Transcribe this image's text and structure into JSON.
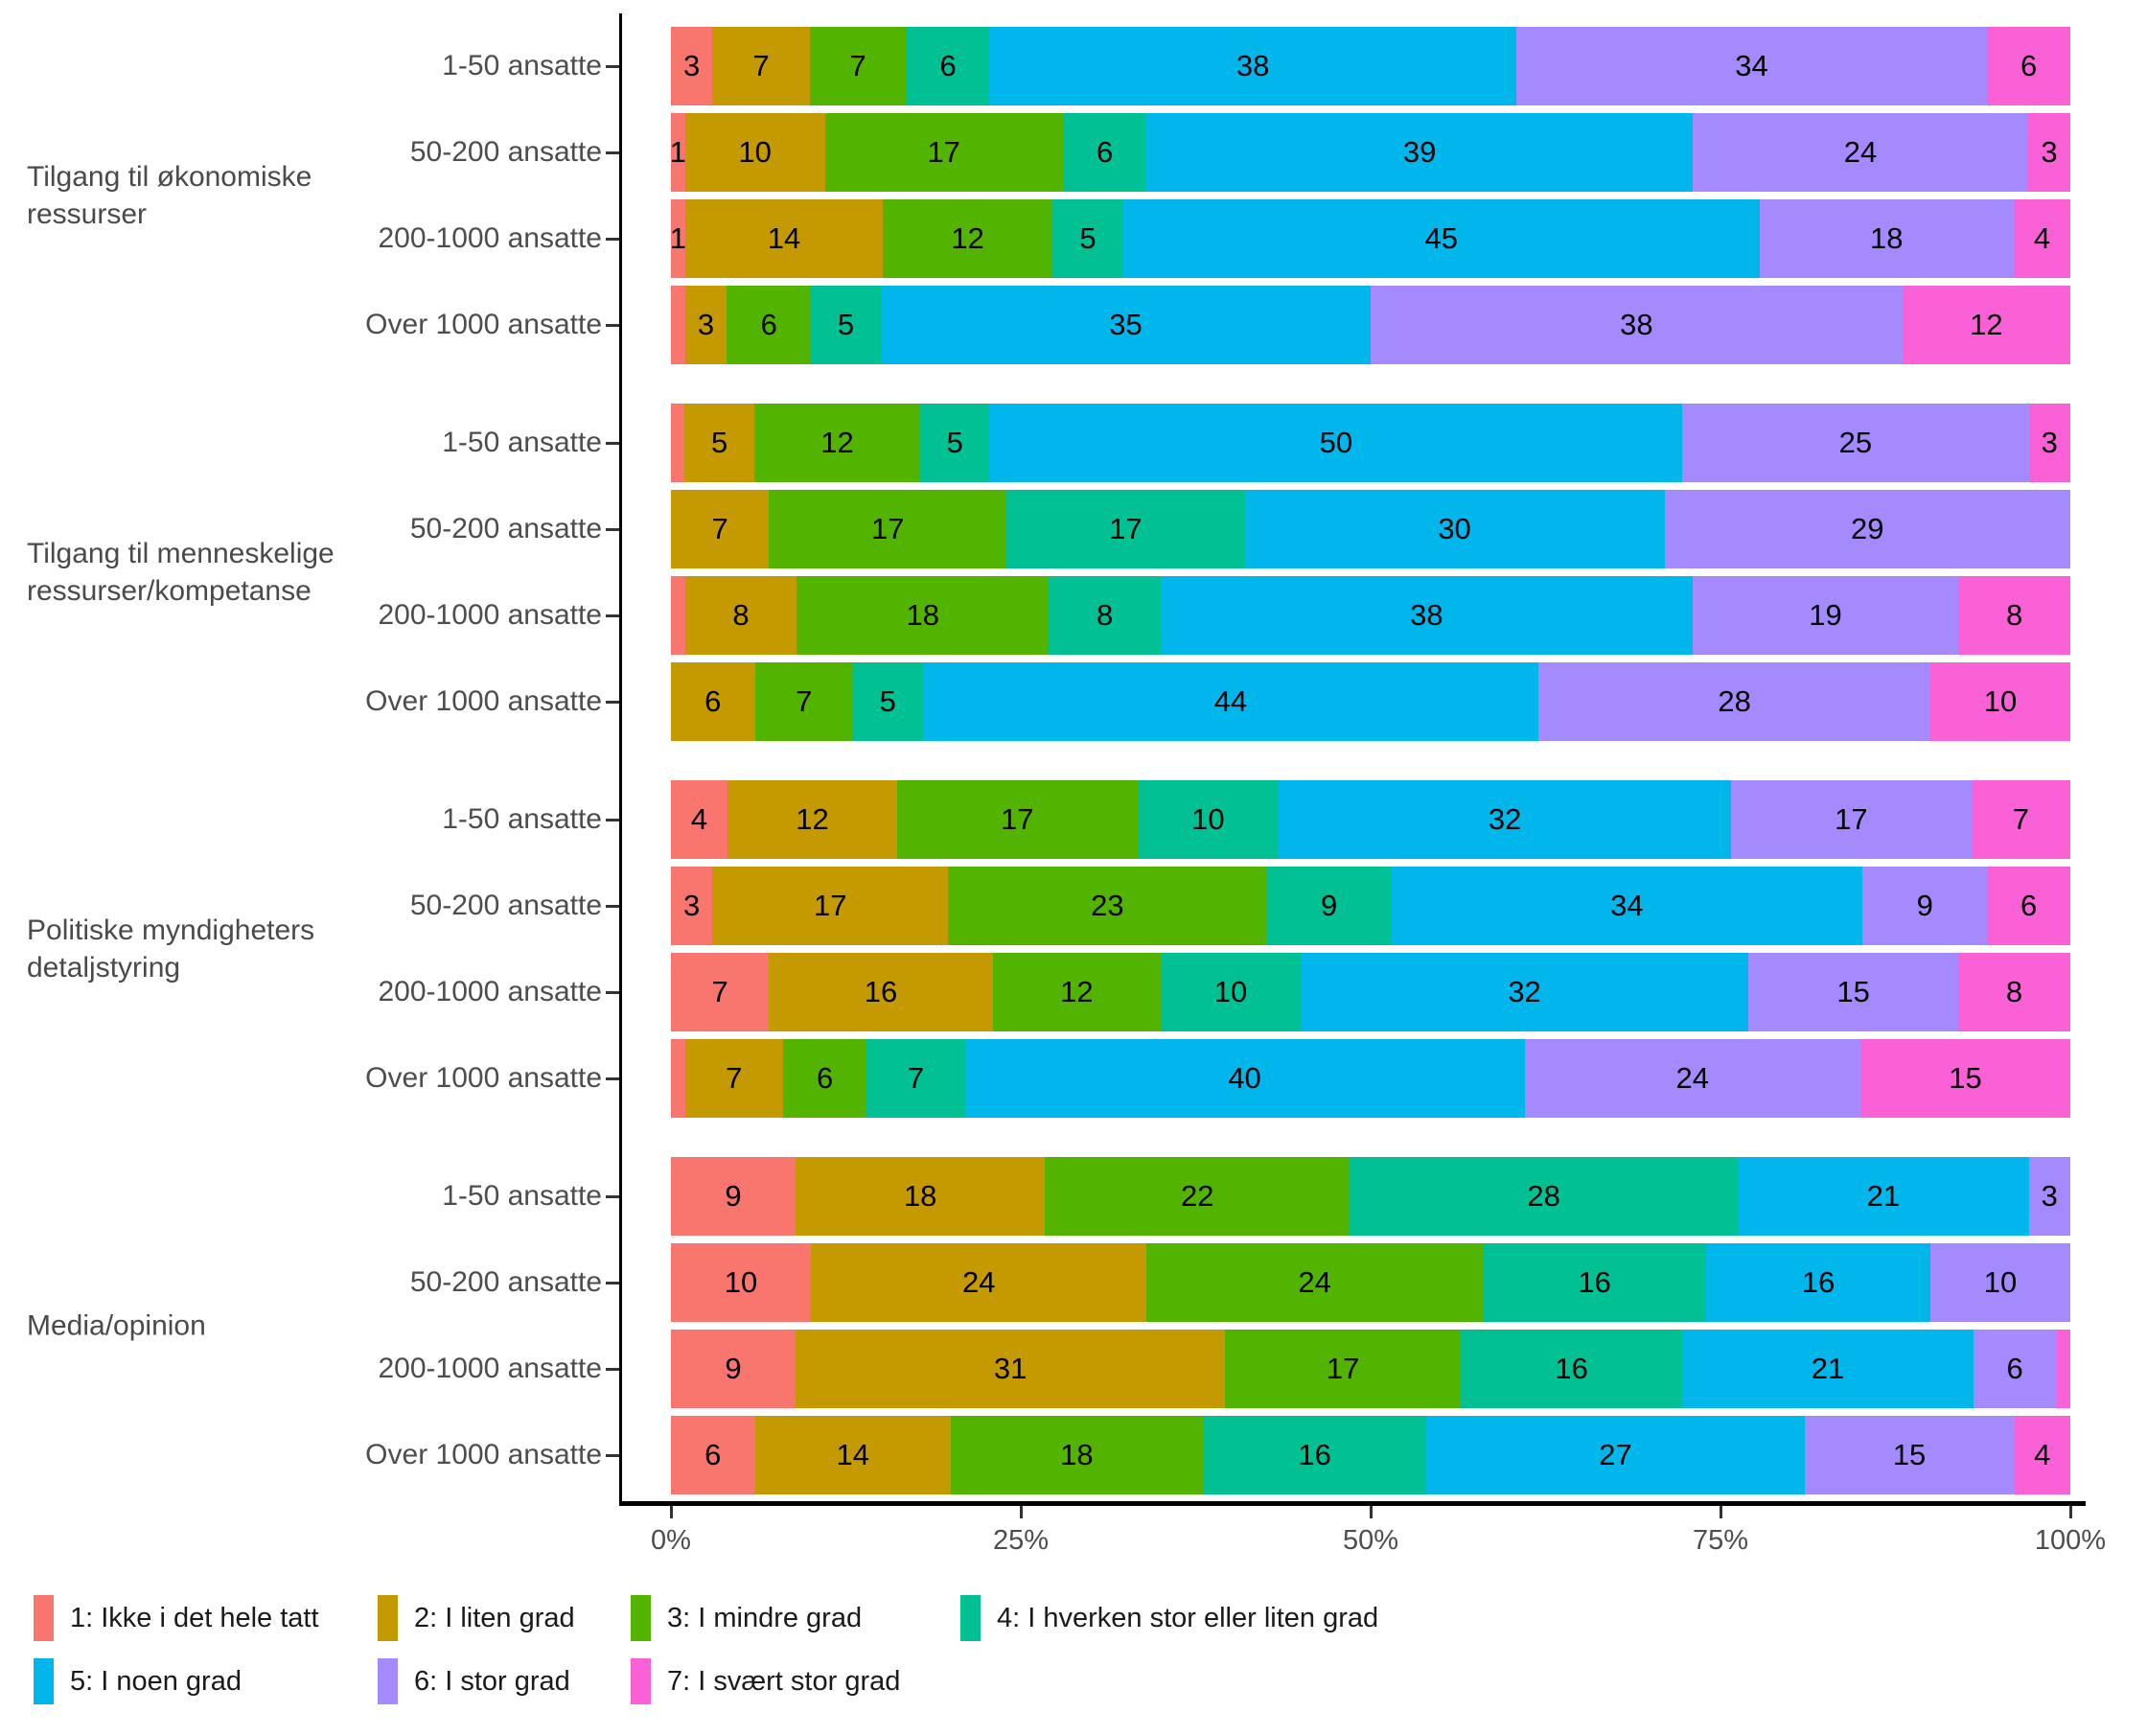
{
  "chart_data": {
    "type": "bar",
    "variant": "stacked-percent-horizontal",
    "grid": false,
    "legend_position": "bottom",
    "x_axis": {
      "range": [
        0,
        100
      ],
      "ticks": [
        {
          "value": 0,
          "label": "0%"
        },
        {
          "value": 25,
          "label": "25%"
        },
        {
          "value": 50,
          "label": "50%"
        },
        {
          "value": 75,
          "label": "75%"
        },
        {
          "value": 100,
          "label": "100%"
        }
      ]
    },
    "levels": [
      {
        "id": 1,
        "label": "1: Ikke i det hele tatt",
        "color": "#F8766D"
      },
      {
        "id": 2,
        "label": "2: I liten grad",
        "color": "#C49A00"
      },
      {
        "id": 3,
        "label": "3: I mindre grad",
        "color": "#53B400"
      },
      {
        "id": 4,
        "label": "4: I hverken stor eller liten grad",
        "color": "#00C094"
      },
      {
        "id": 5,
        "label": "5: I noen grad",
        "color": "#00B6EB"
      },
      {
        "id": 6,
        "label": "6: I stor grad",
        "color": "#A58AFF"
      },
      {
        "id": 7,
        "label": "7: I svært stor grad",
        "color": "#FB61D7"
      }
    ],
    "groups": [
      {
        "label": "Tilgang til økonomiske ressurser",
        "label_lines": [
          "Tilgang til økonomiske",
          "ressurser"
        ],
        "rows": [
          {
            "category": "1-50 ansatte",
            "segments": [
              {
                "level": 1,
                "value": 3,
                "label": "3"
              },
              {
                "level": 2,
                "value": 7,
                "label": "7"
              },
              {
                "level": 3,
                "value": 7,
                "label": "7"
              },
              {
                "level": 4,
                "value": 6,
                "label": "6"
              },
              {
                "level": 5,
                "value": 38,
                "label": "38"
              },
              {
                "level": 6,
                "value": 34,
                "label": "34"
              },
              {
                "level": 7,
                "value": 6,
                "label": "6"
              }
            ]
          },
          {
            "category": "50-200 ansatte",
            "segments": [
              {
                "level": 1,
                "value": 1,
                "label": "1"
              },
              {
                "level": 2,
                "value": 10,
                "label": "10"
              },
              {
                "level": 3,
                "value": 17,
                "label": "17"
              },
              {
                "level": 4,
                "value": 6,
                "label": "6"
              },
              {
                "level": 5,
                "value": 39,
                "label": "39"
              },
              {
                "level": 6,
                "value": 24,
                "label": "24"
              },
              {
                "level": 7,
                "value": 3,
                "label": "3"
              }
            ]
          },
          {
            "category": "200-1000 ansatte",
            "segments": [
              {
                "level": 1,
                "value": 1,
                "label": "1"
              },
              {
                "level": 2,
                "value": 14,
                "label": "14"
              },
              {
                "level": 3,
                "value": 12,
                "label": "12"
              },
              {
                "level": 4,
                "value": 5,
                "label": "5"
              },
              {
                "level": 5,
                "value": 45,
                "label": "45"
              },
              {
                "level": 6,
                "value": 18,
                "label": "18"
              },
              {
                "level": 7,
                "value": 4,
                "label": "4"
              }
            ]
          },
          {
            "category": "Over 1000 ansatte",
            "segments": [
              {
                "level": 1,
                "value": 1,
                "label": ""
              },
              {
                "level": 2,
                "value": 3,
                "label": "3"
              },
              {
                "level": 3,
                "value": 6,
                "label": "6"
              },
              {
                "level": 4,
                "value": 5,
                "label": "5"
              },
              {
                "level": 5,
                "value": 35,
                "label": "35"
              },
              {
                "level": 6,
                "value": 38,
                "label": "38"
              },
              {
                "level": 7,
                "value": 12,
                "label": "12"
              }
            ]
          }
        ]
      },
      {
        "label": "Tilgang til menneskelige ressurser/kompetanse",
        "label_lines": [
          "Tilgang til menneskelige",
          "ressurser/kompetanse"
        ],
        "rows": [
          {
            "category": "1-50 ansatte",
            "segments": [
              {
                "level": 1,
                "value": 1,
                "label": ""
              },
              {
                "level": 2,
                "value": 5,
                "label": "5"
              },
              {
                "level": 3,
                "value": 12,
                "label": "12"
              },
              {
                "level": 4,
                "value": 5,
                "label": "5"
              },
              {
                "level": 5,
                "value": 50,
                "label": "50"
              },
              {
                "level": 6,
                "value": 25,
                "label": "25"
              },
              {
                "level": 7,
                "value": 3,
                "label": "3"
              }
            ]
          },
          {
            "category": "50-200 ansatte",
            "segments": [
              {
                "level": 2,
                "value": 7,
                "label": "7"
              },
              {
                "level": 3,
                "value": 17,
                "label": "17"
              },
              {
                "level": 4,
                "value": 17,
                "label": "17"
              },
              {
                "level": 5,
                "value": 30,
                "label": "30"
              },
              {
                "level": 6,
                "value": 29,
                "label": "29"
              }
            ]
          },
          {
            "category": "200-1000 ansatte",
            "segments": [
              {
                "level": 1,
                "value": 1,
                "label": ""
              },
              {
                "level": 2,
                "value": 8,
                "label": "8"
              },
              {
                "level": 3,
                "value": 18,
                "label": "18"
              },
              {
                "level": 4,
                "value": 8,
                "label": "8"
              },
              {
                "level": 5,
                "value": 38,
                "label": "38"
              },
              {
                "level": 6,
                "value": 19,
                "label": "19"
              },
              {
                "level": 7,
                "value": 8,
                "label": "8"
              }
            ]
          },
          {
            "category": "Over 1000 ansatte",
            "segments": [
              {
                "level": 2,
                "value": 6,
                "label": "6"
              },
              {
                "level": 3,
                "value": 7,
                "label": "7"
              },
              {
                "level": 4,
                "value": 5,
                "label": "5"
              },
              {
                "level": 5,
                "value": 44,
                "label": "44"
              },
              {
                "level": 6,
                "value": 28,
                "label": "28"
              },
              {
                "level": 7,
                "value": 10,
                "label": "10"
              }
            ]
          }
        ]
      },
      {
        "label": "Politiske myndigheters detaljstyring",
        "label_lines": [
          "Politiske myndigheters",
          "detaljstyring"
        ],
        "rows": [
          {
            "category": "1-50 ansatte",
            "segments": [
              {
                "level": 1,
                "value": 4,
                "label": "4"
              },
              {
                "level": 2,
                "value": 12,
                "label": "12"
              },
              {
                "level": 3,
                "value": 17,
                "label": "17"
              },
              {
                "level": 4,
                "value": 10,
                "label": "10"
              },
              {
                "level": 5,
                "value": 32,
                "label": "32"
              },
              {
                "level": 6,
                "value": 17,
                "label": "17"
              },
              {
                "level": 7,
                "value": 7,
                "label": "7"
              }
            ]
          },
          {
            "category": "50-200 ansatte",
            "segments": [
              {
                "level": 1,
                "value": 3,
                "label": "3"
              },
              {
                "level": 2,
                "value": 17,
                "label": "17"
              },
              {
                "level": 3,
                "value": 23,
                "label": "23"
              },
              {
                "level": 4,
                "value": 9,
                "label": "9"
              },
              {
                "level": 5,
                "value": 34,
                "label": "34"
              },
              {
                "level": 6,
                "value": 9,
                "label": "9"
              },
              {
                "level": 7,
                "value": 6,
                "label": "6"
              }
            ]
          },
          {
            "category": "200-1000 ansatte",
            "segments": [
              {
                "level": 1,
                "value": 7,
                "label": "7"
              },
              {
                "level": 2,
                "value": 16,
                "label": "16"
              },
              {
                "level": 3,
                "value": 12,
                "label": "12"
              },
              {
                "level": 4,
                "value": 10,
                "label": "10"
              },
              {
                "level": 5,
                "value": 32,
                "label": "32"
              },
              {
                "level": 6,
                "value": 15,
                "label": "15"
              },
              {
                "level": 7,
                "value": 8,
                "label": "8"
              }
            ]
          },
          {
            "category": "Over 1000 ansatte",
            "segments": [
              {
                "level": 1,
                "value": 1,
                "label": ""
              },
              {
                "level": 2,
                "value": 7,
                "label": "7"
              },
              {
                "level": 3,
                "value": 6,
                "label": "6"
              },
              {
                "level": 4,
                "value": 7,
                "label": "7"
              },
              {
                "level": 5,
                "value": 40,
                "label": "40"
              },
              {
                "level": 6,
                "value": 24,
                "label": "24"
              },
              {
                "level": 7,
                "value": 15,
                "label": "15"
              }
            ]
          }
        ]
      },
      {
        "label": "Media/opinion",
        "label_lines": [
          "Media/opinion"
        ],
        "rows": [
          {
            "category": "1-50 ansatte",
            "segments": [
              {
                "level": 1,
                "value": 9,
                "label": "9"
              },
              {
                "level": 2,
                "value": 18,
                "label": "18"
              },
              {
                "level": 3,
                "value": 22,
                "label": "22"
              },
              {
                "level": 4,
                "value": 28,
                "label": "28"
              },
              {
                "level": 5,
                "value": 21,
                "label": "21"
              },
              {
                "level": 6,
                "value": 3,
                "label": "3"
              }
            ]
          },
          {
            "category": "50-200 ansatte",
            "segments": [
              {
                "level": 1,
                "value": 10,
                "label": "10"
              },
              {
                "level": 2,
                "value": 24,
                "label": "24"
              },
              {
                "level": 3,
                "value": 24,
                "label": "24"
              },
              {
                "level": 4,
                "value": 16,
                "label": "16"
              },
              {
                "level": 5,
                "value": 16,
                "label": "16"
              },
              {
                "level": 6,
                "value": 10,
                "label": "10"
              }
            ]
          },
          {
            "category": "200-1000 ansatte",
            "segments": [
              {
                "level": 1,
                "value": 9,
                "label": "9"
              },
              {
                "level": 2,
                "value": 31,
                "label": "31"
              },
              {
                "level": 3,
                "value": 17,
                "label": "17"
              },
              {
                "level": 4,
                "value": 16,
                "label": "16"
              },
              {
                "level": 5,
                "value": 21,
                "label": "21"
              },
              {
                "level": 6,
                "value": 6,
                "label": "6"
              },
              {
                "level": 7,
                "value": 1,
                "label": ""
              }
            ]
          },
          {
            "category": "Over 1000 ansatte",
            "segments": [
              {
                "level": 1,
                "value": 6,
                "label": "6"
              },
              {
                "level": 2,
                "value": 14,
                "label": "14"
              },
              {
                "level": 3,
                "value": 18,
                "label": "18"
              },
              {
                "level": 4,
                "value": 16,
                "label": "16"
              },
              {
                "level": 5,
                "value": 27,
                "label": "27"
              },
              {
                "level": 6,
                "value": 15,
                "label": "15"
              },
              {
                "level": 7,
                "value": 4,
                "label": "4"
              }
            ]
          }
        ]
      }
    ],
    "legend_rows": [
      [
        1,
        2,
        3,
        4
      ],
      [
        5,
        6,
        7
      ]
    ]
  }
}
